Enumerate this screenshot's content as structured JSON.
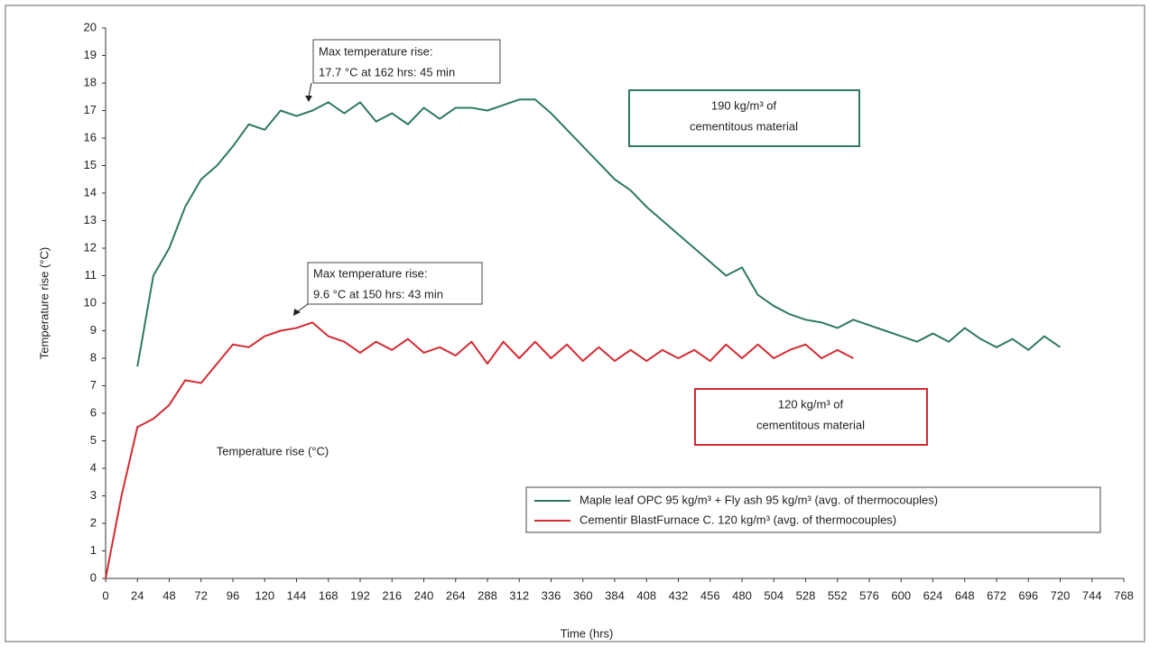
{
  "chart_data": {
    "type": "line",
    "x_label": "Time (hrs)",
    "y_label": "Temperature rise (°C)",
    "inner_label": "Temperature rise (°C)",
    "x": [
      0,
      12,
      24,
      36,
      48,
      60,
      72,
      84,
      96,
      108,
      120,
      132,
      144,
      156,
      168,
      180,
      192,
      204,
      216,
      228,
      240,
      252,
      264,
      276,
      288,
      300,
      312,
      324,
      336,
      348,
      360,
      372,
      384,
      396,
      408,
      420,
      432,
      444,
      456,
      468,
      480,
      492,
      504,
      516,
      528,
      540,
      552,
      564,
      576,
      588,
      600,
      612,
      624,
      636,
      648,
      660,
      672,
      684,
      696,
      708,
      720
    ],
    "series": [
      {
        "name": "Maple leaf OPC 95 kg/m³ + Fly ash 95 kg/m³ (avg. of thermocouples)",
        "color": "#2e7a5a",
        "values": [
          null,
          null,
          7.7,
          11,
          12,
          13.5,
          14.5,
          15,
          15.7,
          16.5,
          16.3,
          17,
          16.8,
          17,
          17.3,
          16.9,
          17.3,
          16.6,
          16.9,
          16.5,
          17.1,
          16.7,
          17.1,
          17.1,
          17,
          17.2,
          17.4,
          17.4,
          16.9,
          16.3,
          15.7,
          15.1,
          14.5,
          14.1,
          13.5,
          13,
          12.5,
          12,
          11.5,
          11,
          11.3,
          10.3,
          9.9,
          9.6,
          9.4,
          9.3,
          9.1,
          9.4,
          9.2,
          9,
          8.8,
          8.6,
          8.9,
          8.6,
          9.1,
          8.7,
          8.4,
          8.7,
          8.3,
          8.8,
          8.4
        ]
      },
      {
        "name": "Cementir BlastFurnace C. 120 kg/m³ (avg. of thermocouples)",
        "color": "#d42a32",
        "values": [
          0,
          3,
          5.5,
          5.8,
          6.3,
          7.2,
          7.1,
          7.8,
          8.5,
          8.4,
          8.8,
          9,
          9.1,
          9.3,
          8.8,
          8.6,
          8.2,
          8.6,
          8.3,
          8.7,
          8.2,
          8.4,
          8.1,
          8.6,
          7.8,
          8.6,
          8,
          8.6,
          8,
          8.5,
          7.9,
          8.4,
          7.9,
          8.3,
          7.9,
          8.3,
          8,
          8.3,
          7.9,
          8.5,
          8,
          8.5,
          8,
          8.3,
          8.5,
          8,
          8.3,
          8,
          null,
          null,
          null,
          null,
          null,
          null,
          null,
          null,
          null,
          null,
          null,
          null,
          null
        ]
      }
    ],
    "xlim": [
      0,
      768
    ],
    "xticks": [
      0,
      24,
      48,
      72,
      96,
      120,
      144,
      168,
      192,
      216,
      240,
      264,
      288,
      312,
      336,
      360,
      384,
      408,
      432,
      456,
      480,
      504,
      528,
      552,
      576,
      600,
      624,
      648,
      672,
      696,
      720,
      744,
      768
    ],
    "ylim": [
      0,
      20
    ],
    "yticks": [
      0,
      1,
      2,
      3,
      4,
      5,
      6,
      7,
      8,
      9,
      10,
      11,
      12,
      13,
      14,
      15,
      16,
      17,
      18,
      19,
      20
    ],
    "annotations": [
      {
        "lines": [
          "Max temperature rise:",
          "17.7 °C at 162 hrs: 45 min"
        ]
      },
      {
        "lines": [
          "Max temperature rise:",
          "9.6 °C at 150 hrs: 43 min"
        ]
      },
      {
        "lines": [
          "190 kg/m³ of",
          "cementitous material"
        ]
      },
      {
        "lines": [
          "120 kg/m³ of",
          "cementitous material"
        ]
      }
    ],
    "grid": false
  }
}
